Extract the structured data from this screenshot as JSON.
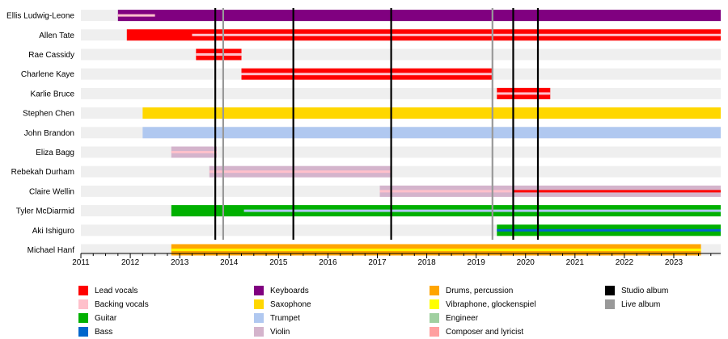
{
  "chart_data": {
    "type": "timeline",
    "title": "",
    "xlabel": "",
    "ylabel": "",
    "xlim": [
      2011.0,
      2023.95
    ],
    "x_ticks": [
      "2011",
      "2012",
      "2013",
      "2014",
      "2015",
      "2016",
      "2017",
      "2018",
      "2019",
      "2020",
      "2021",
      "2022",
      "2023"
    ],
    "members": [
      "Ellis Ludwig-Leone",
      "Allen Tate",
      "Rae Cassidy",
      "Charlene Kaye",
      "Karlie Bruce",
      "Stephen Chen",
      "John Brandon",
      "Eliza Bagg",
      "Rebekah Durham",
      "Claire Wellin",
      "Tyler McDiarmid",
      "Aki Ishiguro",
      "Michael Hanf"
    ],
    "bars": [
      {
        "member": "Ellis Ludwig-Leone",
        "role": "Keyboards",
        "start": 2011.75,
        "end": 2023.95,
        "stripe": "Backing vocals",
        "stripe_start": 2011.75,
        "stripe_end": 2012.5
      },
      {
        "member": "Allen Tate",
        "role": "Lead vocals",
        "start": 2011.93,
        "end": 2023.95,
        "stripe": "Backing vocals",
        "stripe_start": 2013.25,
        "stripe_end": 2023.95
      },
      {
        "member": "Rae Cassidy",
        "role": "Lead vocals",
        "start": 2013.33,
        "end": 2014.25,
        "stripe": "Backing vocals",
        "stripe_start": 2013.33,
        "stripe_end": 2014.25
      },
      {
        "member": "Charlene Kaye",
        "role": "Lead vocals",
        "start": 2014.25,
        "end": 2019.33,
        "stripe": "Backing vocals",
        "stripe_start": 2014.25,
        "stripe_end": 2019.33
      },
      {
        "member": "Karlie Bruce",
        "role": "Lead vocals",
        "start": 2019.42,
        "end": 2020.5,
        "stripe": "Backing vocals",
        "stripe_start": 2019.42,
        "stripe_end": 2020.5
      },
      {
        "member": "Stephen Chen",
        "role": "Saxophone",
        "start": 2012.25,
        "end": 2023.95
      },
      {
        "member": "John Brandon",
        "role": "Trumpet",
        "start": 2012.25,
        "end": 2023.95
      },
      {
        "member": "Eliza Bagg",
        "role": "Violin",
        "start": 2012.83,
        "end": 2013.75,
        "stripe": "Backing vocals",
        "stripe_start": 2012.83,
        "stripe_end": 2013.75
      },
      {
        "member": "Rebekah Durham",
        "role": "Violin",
        "start": 2013.6,
        "end": 2017.28,
        "stripe": "Backing vocals",
        "stripe_start": 2013.6,
        "stripe_end": 2017.28
      },
      {
        "member": "Claire Wellin",
        "role": "Violin",
        "start": 2017.05,
        "end": 2023.95,
        "stripe": "Backing vocals",
        "stripe_start": 2017.05,
        "stripe_end": 2019.75,
        "stripe2": "Lead vocals",
        "stripe2_start": 2019.75,
        "stripe2_end": 2023.95
      },
      {
        "member": "Tyler McDiarmid",
        "role": "Guitar",
        "start": 2012.83,
        "end": 2023.95,
        "stripe": "Trumpet",
        "stripe_start": 2014.3,
        "stripe_end": 2023.95
      },
      {
        "member": "Aki Ishiguro",
        "role": "Guitar",
        "start": 2019.42,
        "end": 2023.95,
        "stripe": "Bass",
        "stripe_start": 2019.42,
        "stripe_end": 2023.95
      },
      {
        "member": "Michael Hanf",
        "role": "Drums, percussion",
        "start": 2012.83,
        "end": 2023.55,
        "stripe": "Vibraphone, glockenspiel",
        "stripe_start": 2012.83,
        "stripe_end": 2023.55
      }
    ],
    "studio_albums": [
      2013.72,
      2015.3,
      2017.28,
      2019.75,
      2020.25
    ],
    "live_albums": [
      2013.88,
      2019.33
    ],
    "legend": [
      {
        "label": "Lead vocals",
        "color": "#ff0000"
      },
      {
        "label": "Backing vocals",
        "color": "#ffc0cb"
      },
      {
        "label": "Guitar",
        "color": "#00b000"
      },
      {
        "label": "Bass",
        "color": "#0066cc"
      },
      {
        "label": "Keyboards",
        "color": "#800080"
      },
      {
        "label": "Saxophone",
        "color": "#ffd700"
      },
      {
        "label": "Trumpet",
        "color": "#b0c8f0"
      },
      {
        "label": "Violin",
        "color": "#d4b4cc"
      },
      {
        "label": "Drums, percussion",
        "color": "#ffa500"
      },
      {
        "label": "Vibraphone, glockenspiel",
        "color": "#ffff00"
      },
      {
        "label": "Engineer",
        "color": "#a0d0a0"
      },
      {
        "label": "Composer and lyricist",
        "color": "#ffa0a0"
      },
      {
        "label": "Studio album",
        "color": "#000000"
      },
      {
        "label": "Live album",
        "color": "#999999"
      }
    ]
  }
}
